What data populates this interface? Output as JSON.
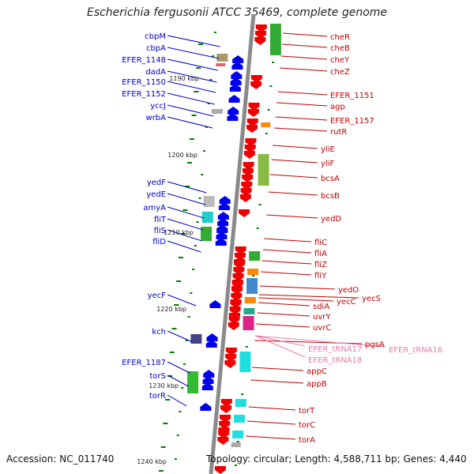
{
  "title": "Escherichia fergusonii ATCC 35469, complete genome",
  "accession": "Accession: NC_011740",
  "topology": "Topology: circular; Length: 4,588,711 bp; Genes: 4,440",
  "colors": {
    "backbone": "#8a8a8a",
    "forward_label": "#c00000",
    "reverse_label": "#0000c0",
    "rna_label": "#e87aa8",
    "tick": "#008000",
    "forward_gene": "#ee0000",
    "reverse_gene": "#0000ee"
  },
  "coordinate_labels": [
    "1190 kbp",
    "1200 kbp",
    "1210 kbp",
    "1220 kbp",
    "1230 kbp",
    "1240 kbp"
  ],
  "reverse_strand_genes": [
    "cbpM",
    "cbpA",
    "EFER_1148",
    "dadA",
    "EFER_1150",
    "EFER_1152",
    "yccJ",
    "wrbA",
    "yedF",
    "yedE",
    "amyA",
    "fliT",
    "fliS",
    "fliD",
    "yecF",
    "kch",
    "EFER_1187",
    "torS",
    "torR"
  ],
  "forward_strand_genes": [
    "cheR",
    "cheB",
    "cheY",
    "cheZ",
    "EFER_1151",
    "agp",
    "EFER_1157",
    "rutR",
    "yliE",
    "yliF",
    "bcsA",
    "bcsB",
    "yedD",
    "fliC",
    "fliA",
    "fliZ",
    "fliY",
    "yedO",
    "yecC",
    "yecS",
    "sdiA",
    "uvrY",
    "uvrC",
    "pgsA",
    "appC",
    "appB",
    "torT",
    "torC",
    "torA"
  ],
  "rna_genes": [
    "EFER_tRNA17",
    "EFER_tRNA16",
    "EFER_tRNA18"
  ]
}
